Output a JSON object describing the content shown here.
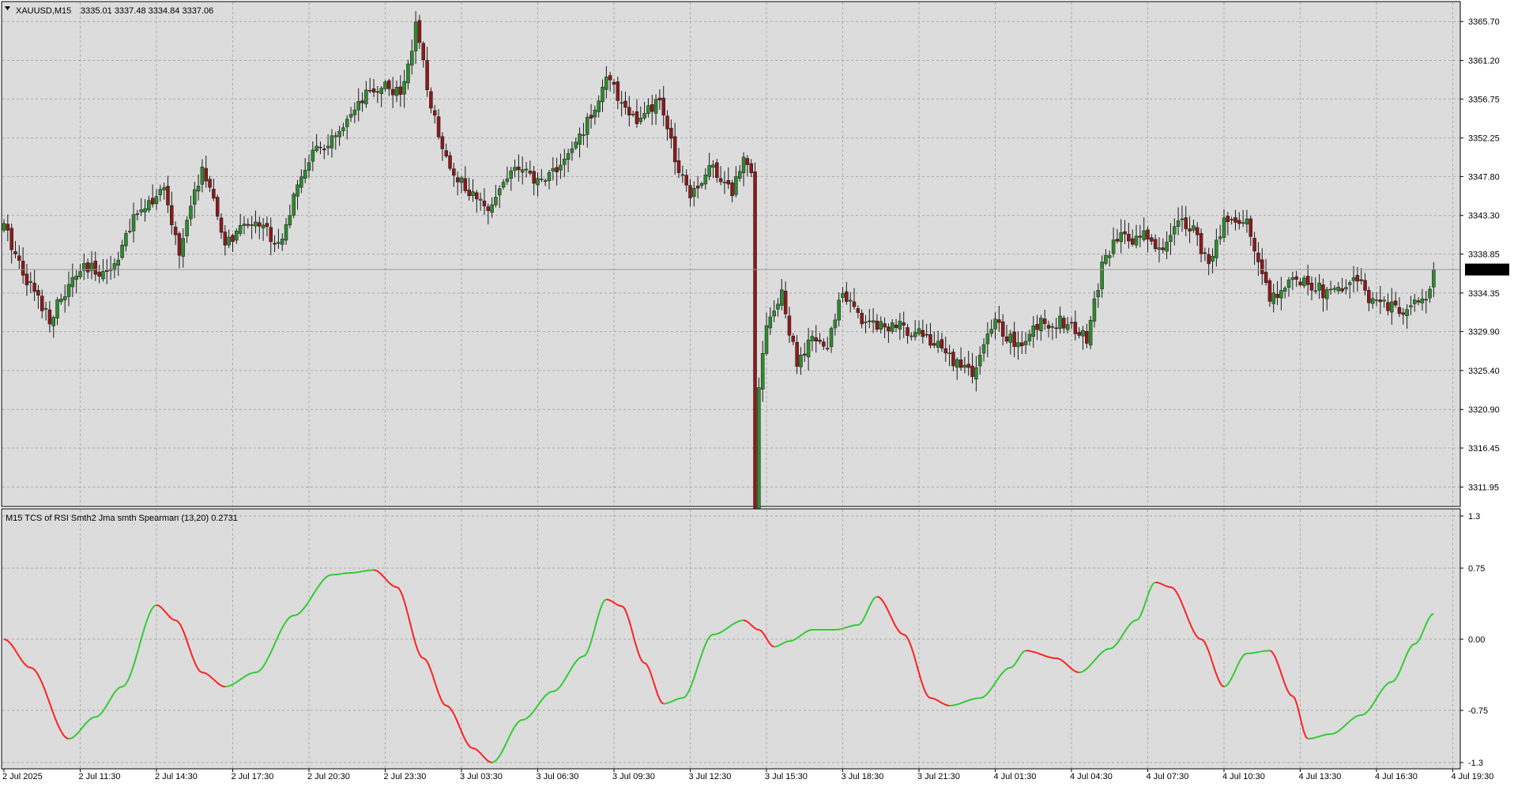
{
  "header": {
    "symbol": "XAUUSD,M15",
    "ohlc": "3335.01 3337.48 3334.84 3337.06",
    "indicator_label": "M15 TCS of RSI Smth2 Jma smth Spearman (13,20) 0.2731"
  },
  "colors": {
    "background": "#dcdcdc",
    "grid": "#a8a8a8",
    "bull": "#2e8b2e",
    "bear": "#8b1a1a",
    "wick": "#1a1a1a",
    "rising": "#33cc33",
    "falling": "#ff2222",
    "price_tag_bg": "#000000",
    "price_tag_fg": "#ffffff"
  },
  "chart_data": [
    {
      "type": "candlestick",
      "ylim": [
        3309.7,
        3368.0
      ],
      "y_ticks": [
        "3365.70",
        "3361.20",
        "3356.75",
        "3352.25",
        "3347.80",
        "3343.30",
        "3338.85",
        "3334.35",
        "3329.90",
        "3325.40",
        "3320.90",
        "3316.45",
        "3311.95"
      ],
      "y_tick_values": [
        3365.7,
        3361.2,
        3356.75,
        3352.25,
        3347.8,
        3343.3,
        3338.85,
        3334.35,
        3329.9,
        3325.4,
        3320.9,
        3316.45,
        3311.95
      ],
      "last_price": "3337.06",
      "last_price_value": 3337.06,
      "close_anchors": [
        [
          0,
          3342.0
        ],
        [
          6,
          3336.0
        ],
        [
          12,
          3331.5
        ],
        [
          20,
          3337.0
        ],
        [
          28,
          3337.0
        ],
        [
          36,
          3344.5
        ],
        [
          42,
          3346.0
        ],
        [
          46,
          3339.0
        ],
        [
          52,
          3349.0
        ],
        [
          58,
          3340.0
        ],
        [
          66,
          3343.0
        ],
        [
          72,
          3340.0
        ],
        [
          80,
          3350.0
        ],
        [
          88,
          3352.5
        ],
        [
          95,
          3357.0
        ],
        [
          100,
          3358.5
        ],
        [
          104,
          3357.0
        ],
        [
          108,
          3365.0
        ],
        [
          112,
          3356.0
        ],
        [
          116,
          3350.0
        ],
        [
          120,
          3347.0
        ],
        [
          126,
          3344.0
        ],
        [
          134,
          3349.0
        ],
        [
          140,
          3347.0
        ],
        [
          148,
          3350.0
        ],
        [
          153,
          3354.0
        ],
        [
          158,
          3359.0
        ],
        [
          163,
          3356.0
        ],
        [
          166,
          3354.0
        ],
        [
          172,
          3356.5
        ],
        [
          176,
          3350.0
        ],
        [
          180,
          3346.0
        ],
        [
          186,
          3349.0
        ],
        [
          191,
          3346.0
        ],
        [
          194,
          3350.0
        ],
        [
          196,
          3349.0
        ],
        [
          197,
          3310.0
        ],
        [
          198,
          3323.5
        ],
        [
          200,
          3331.0
        ],
        [
          204,
          3334.0
        ],
        [
          208,
          3326.0
        ],
        [
          212,
          3329.0
        ],
        [
          216,
          3328.0
        ],
        [
          220,
          3335.0
        ],
        [
          224,
          3331.5
        ],
        [
          232,
          3330.5
        ],
        [
          240,
          3330.0
        ],
        [
          248,
          3327.0
        ],
        [
          254,
          3325.0
        ],
        [
          260,
          3331.0
        ],
        [
          266,
          3328.0
        ],
        [
          272,
          3331.0
        ],
        [
          278,
          3331.0
        ],
        [
          284,
          3329.0
        ],
        [
          288,
          3337.5
        ],
        [
          292,
          3340.5
        ],
        [
          300,
          3341.0
        ],
        [
          304,
          3339.0
        ],
        [
          308,
          3343.0
        ],
        [
          312,
          3342.0
        ],
        [
          316,
          3337.0
        ],
        [
          320,
          3343.0
        ],
        [
          326,
          3342.5
        ],
        [
          332,
          3334.0
        ],
        [
          340,
          3336.0
        ],
        [
          348,
          3334.0
        ],
        [
          354,
          3336.0
        ],
        [
          360,
          3333.0
        ],
        [
          366,
          3332.5
        ],
        [
          372,
          3333.0
        ],
        [
          375,
          3336.5
        ]
      ],
      "x_ticks": [
        "2 Jul 2025",
        "2 Jul 11:30",
        "2 Jul 14:30",
        "2 Jul 17:30",
        "2 Jul 20:30",
        "2 Jul 23:30",
        "3 Jul 03:30",
        "3 Jul 06:30",
        "3 Jul 09:30",
        "3 Jul 12:30",
        "3 Jul 15:30",
        "3 Jul 18:30",
        "3 Jul 21:30",
        "4 Jul 01:30",
        "4 Jul 04:30",
        "4 Jul 07:30",
        "4 Jul 10:30",
        "4 Jul 13:30",
        "4 Jul 16:30",
        "4 Jul 19:30"
      ]
    },
    {
      "type": "line",
      "name": "TCS of RSI Smth2 Jma smth Spearman",
      "ylim": [
        -1.3,
        1.3
      ],
      "y_ticks": [
        "1.3",
        "0.75",
        "0.00",
        "-0.75",
        "-1.3"
      ],
      "y_tick_values": [
        1.3,
        0.75,
        0.0,
        -0.75,
        -1.3
      ],
      "last_value": 0.2731,
      "points": [
        [
          0,
          0.0
        ],
        [
          7,
          -0.3
        ],
        [
          17,
          -1.05
        ],
        [
          24,
          -0.82
        ],
        [
          31,
          -0.5
        ],
        [
          40,
          0.36
        ],
        [
          45,
          0.2
        ],
        [
          52,
          -0.35
        ],
        [
          58,
          -0.5
        ],
        [
          66,
          -0.35
        ],
        [
          76,
          0.25
        ],
        [
          86,
          0.68
        ],
        [
          91,
          0.7
        ],
        [
          97,
          0.73
        ],
        [
          103,
          0.55
        ],
        [
          110,
          -0.2
        ],
        [
          116,
          -0.7
        ],
        [
          123,
          -1.15
        ],
        [
          128,
          -1.3
        ],
        [
          136,
          -0.85
        ],
        [
          144,
          -0.55
        ],
        [
          152,
          -0.18
        ],
        [
          158,
          0.42
        ],
        [
          162,
          0.35
        ],
        [
          168,
          -0.25
        ],
        [
          173,
          -0.68
        ],
        [
          178,
          -0.62
        ],
        [
          186,
          0.05
        ],
        [
          194,
          0.2
        ],
        [
          198,
          0.1
        ],
        [
          202,
          -0.08
        ],
        [
          206,
          -0.02
        ],
        [
          212,
          0.1
        ],
        [
          218,
          0.1
        ],
        [
          224,
          0.15
        ],
        [
          229,
          0.45
        ],
        [
          236,
          0.05
        ],
        [
          243,
          -0.62
        ],
        [
          248,
          -0.7
        ],
        [
          256,
          -0.62
        ],
        [
          264,
          -0.3
        ],
        [
          268,
          -0.12
        ],
        [
          276,
          -0.2
        ],
        [
          282,
          -0.35
        ],
        [
          290,
          -0.1
        ],
        [
          297,
          0.2
        ],
        [
          302,
          0.6
        ],
        [
          306,
          0.55
        ],
        [
          314,
          0.0
        ],
        [
          320,
          -0.5
        ],
        [
          326,
          -0.15
        ],
        [
          332,
          -0.12
        ],
        [
          338,
          -0.6
        ],
        [
          342,
          -1.05
        ],
        [
          348,
          -1.0
        ],
        [
          356,
          -0.8
        ],
        [
          364,
          -0.45
        ],
        [
          370,
          -0.05
        ],
        [
          375,
          0.27
        ]
      ]
    }
  ]
}
